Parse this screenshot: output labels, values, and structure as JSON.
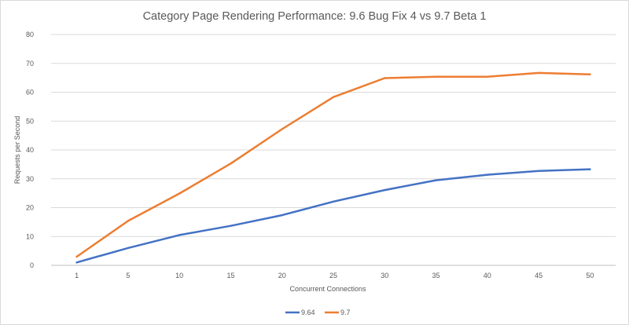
{
  "chart_data": {
    "type": "line",
    "title": "Category Page Rendering Performance:  9.6 Bug Fix 4 vs 9.7 Beta 1",
    "xlabel": "Concurrent Connections",
    "ylabel": "Requests per Second",
    "categories": [
      "1",
      "5",
      "10",
      "15",
      "20",
      "25",
      "30",
      "35",
      "40",
      "45",
      "50"
    ],
    "ylim": [
      0,
      80
    ],
    "yticks": [
      0,
      10,
      20,
      30,
      40,
      50,
      60,
      70,
      80
    ],
    "grid": "horizontal",
    "legend": "bottom",
    "series": [
      {
        "name": "9.64",
        "color": "#4472c4",
        "values": [
          1,
          6,
          10.5,
          13.7,
          17.4,
          22.1,
          26.1,
          29.5,
          31.4,
          32.7,
          33.3
        ]
      },
      {
        "name": "9.7",
        "color": "#ed7d31",
        "values": [
          3,
          15.4,
          24.9,
          35.3,
          47.2,
          58.3,
          64.9,
          65.4,
          65.4,
          66.7,
          66.2
        ]
      }
    ]
  }
}
